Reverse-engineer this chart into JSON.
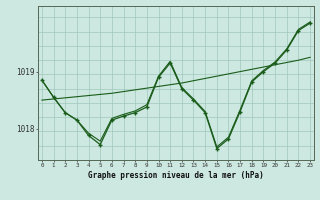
{
  "xlabel": "Graphe pression niveau de la mer (hPa)",
  "background_color": "#cce8e0",
  "plot_bg_color": "#cce8e0",
  "grid_color": "#a0c8bc",
  "line_color": "#1a5c1a",
  "hours": [
    0,
    1,
    2,
    3,
    4,
    5,
    6,
    7,
    8,
    9,
    10,
    11,
    12,
    13,
    14,
    15,
    16,
    17,
    18,
    19,
    20,
    21,
    22,
    23
  ],
  "main_data": [
    1018.85,
    1018.55,
    1018.28,
    1018.15,
    1017.88,
    1017.72,
    1018.15,
    1018.22,
    1018.28,
    1018.38,
    1018.9,
    1019.15,
    1018.7,
    1018.5,
    1018.28,
    1017.65,
    1017.82,
    1018.3,
    1018.82,
    1019.0,
    1019.15,
    1019.38,
    1019.72,
    1019.85
  ],
  "trend_data": [
    1018.5,
    1018.52,
    1018.54,
    1018.56,
    1018.58,
    1018.6,
    1018.62,
    1018.65,
    1018.68,
    1018.71,
    1018.74,
    1018.77,
    1018.8,
    1018.84,
    1018.88,
    1018.92,
    1018.96,
    1019.0,
    1019.04,
    1019.08,
    1019.12,
    1019.16,
    1019.2,
    1019.25
  ],
  "extra_data": [
    1018.85,
    1018.55,
    1018.28,
    1018.15,
    1017.92,
    1017.78,
    1018.18,
    1018.25,
    1018.31,
    1018.42,
    1018.92,
    1019.18,
    1018.72,
    1018.52,
    1018.3,
    1017.68,
    1017.85,
    1018.33,
    1018.84,
    1019.02,
    1019.17,
    1019.4,
    1019.74,
    1019.87
  ],
  "ylim_min": 1017.45,
  "ylim_max": 1020.15,
  "yticks": [
    1018.0,
    1019.0
  ],
  "ytick_labels": [
    "1018",
    "1019"
  ]
}
